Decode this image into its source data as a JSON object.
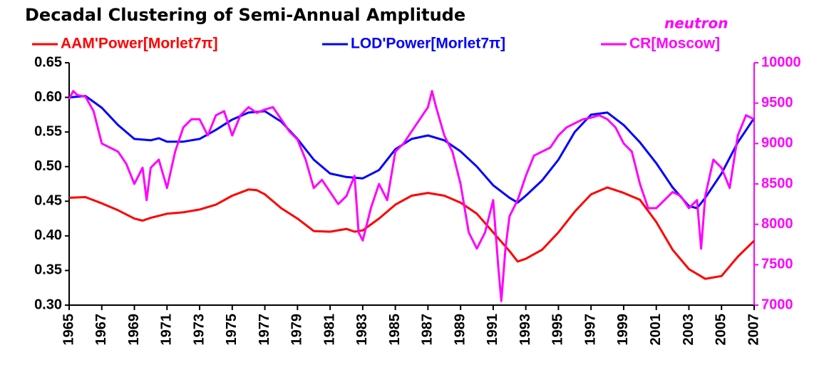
{
  "chart_data": {
    "type": "line",
    "title": "Decadal Clustering of Semi-Annual Amplitude",
    "annotation": "neutron",
    "xlim": [
      1965,
      2007
    ],
    "xticks": [
      1965,
      1967,
      1969,
      1971,
      1973,
      1975,
      1977,
      1979,
      1981,
      1983,
      1985,
      1987,
      1989,
      1991,
      1993,
      1995,
      1997,
      1999,
      2001,
      2003,
      2005,
      2007
    ],
    "ylim": [
      0.3,
      0.65
    ],
    "yticks": [
      {
        "value": 0.3,
        "label": "0.30"
      },
      0.35,
      {
        "value": 0.4,
        "label": "0.40"
      },
      0.45,
      {
        "value": 0.5,
        "label": "0.50"
      },
      0.55,
      {
        "value": 0.6,
        "label": "0.60"
      },
      0.65
    ],
    "y2lim": [
      7000,
      10000
    ],
    "y2ticks": [
      7000,
      7500,
      8000,
      8500,
      9000,
      9500,
      10000
    ],
    "y2color": "#ff00ff",
    "series": [
      {
        "name": "AAM'Power[Morlet7π]",
        "color": "#ff0000",
        "x": [
          1965,
          1966,
          1967,
          1968,
          1969,
          1969.5,
          1970,
          1971,
          1972,
          1973,
          1974,
          1975,
          1976,
          1976.5,
          1977,
          1978,
          1979,
          1980,
          1981,
          1982,
          1982.5,
          1983,
          1984,
          1985,
          1986,
          1987,
          1988,
          1989,
          1990,
          1991,
          1992,
          1992.5,
          1993,
          1994,
          1995,
          1996,
          1997,
          1998,
          1999,
          2000,
          2001,
          2002,
          2003,
          2004,
          2005,
          2006,
          2007
        ],
        "values": [
          0.455,
          0.456,
          0.447,
          0.437,
          0.425,
          0.422,
          0.426,
          0.432,
          0.434,
          0.438,
          0.445,
          0.458,
          0.467,
          0.466,
          0.46,
          0.44,
          0.425,
          0.407,
          0.406,
          0.41,
          0.406,
          0.408,
          0.425,
          0.445,
          0.458,
          0.462,
          0.458,
          0.448,
          0.432,
          0.405,
          0.378,
          0.363,
          0.367,
          0.38,
          0.405,
          0.435,
          0.46,
          0.47,
          0.462,
          0.452,
          0.42,
          0.38,
          0.352,
          0.338,
          0.342,
          0.37,
          0.393
        ]
      },
      {
        "name": "LOD'Power[Morlet7π]",
        "color": "#0000ff",
        "x": [
          1965,
          1966,
          1967,
          1968,
          1969,
          1970,
          1970.5,
          1971,
          1972,
          1973,
          1974,
          1975,
          1976,
          1977,
          1978,
          1979,
          1980,
          1981,
          1982,
          1983,
          1984,
          1985,
          1986,
          1987,
          1988,
          1989,
          1990,
          1991,
          1992,
          1992.5,
          1993,
          1994,
          1995,
          1996,
          1997,
          1998,
          1999,
          2000,
          2001,
          2002,
          2003,
          2003.5,
          2004,
          2005,
          2006,
          2007
        ],
        "values": [
          0.6,
          0.602,
          0.585,
          0.56,
          0.54,
          0.538,
          0.541,
          0.536,
          0.536,
          0.54,
          0.553,
          0.568,
          0.578,
          0.58,
          0.565,
          0.54,
          0.51,
          0.49,
          0.485,
          0.483,
          0.495,
          0.525,
          0.54,
          0.545,
          0.538,
          0.522,
          0.5,
          0.473,
          0.455,
          0.448,
          0.458,
          0.48,
          0.51,
          0.55,
          0.575,
          0.578,
          0.56,
          0.535,
          0.505,
          0.47,
          0.443,
          0.44,
          0.455,
          0.49,
          0.535,
          0.57
        ]
      },
      {
        "name": "CR[Moscow]",
        "color": "#ff00ff",
        "axis": "y2",
        "x": [
          1965,
          1965.25,
          1965.5,
          1966,
          1966.5,
          1967,
          1967.5,
          1968,
          1968.5,
          1969,
          1969.5,
          1969.75,
          1970,
          1970.5,
          1971,
          1971.5,
          1972,
          1972.5,
          1973,
          1973.5,
          1974,
          1974.5,
          1975,
          1975.5,
          1976,
          1976.5,
          1977,
          1977.5,
          1978,
          1978.5,
          1979,
          1979.5,
          1980,
          1980.5,
          1981,
          1981.5,
          1982,
          1982.5,
          1982.75,
          1983,
          1983.5,
          1984,
          1984.5,
          1985,
          1985.5,
          1986,
          1986.5,
          1987,
          1987.25,
          1987.5,
          1988,
          1988.5,
          1989,
          1989.5,
          1990,
          1990.5,
          1991,
          1991.3,
          1991.5,
          1991.75,
          1992,
          1992.5,
          1993,
          1993.5,
          1994,
          1994.5,
          1995,
          1995.5,
          1996,
          1996.5,
          1997,
          1997.5,
          1998,
          1998.5,
          1999,
          1999.5,
          2000,
          2000.5,
          2001,
          2001.5,
          2002,
          2002.5,
          2003,
          2003.5,
          2003.75,
          2004,
          2004.5,
          2005,
          2005.5,
          2006,
          2006.5,
          2007
        ],
        "values": [
          9550,
          9650,
          9600,
          9580,
          9400,
          9000,
          8950,
          8900,
          8750,
          8500,
          8700,
          8300,
          8700,
          8800,
          8450,
          8900,
          9200,
          9300,
          9300,
          9100,
          9350,
          9400,
          9100,
          9350,
          9450,
          9380,
          9420,
          9450,
          9300,
          9150,
          9050,
          8800,
          8450,
          8550,
          8400,
          8250,
          8350,
          8600,
          7900,
          7800,
          8200,
          8500,
          8300,
          8900,
          9000,
          9150,
          9300,
          9450,
          9650,
          9450,
          9100,
          8900,
          8500,
          7900,
          7700,
          7900,
          8300,
          7500,
          7050,
          7700,
          8100,
          8300,
          8600,
          8850,
          8900,
          8950,
          9100,
          9200,
          9250,
          9300,
          9320,
          9350,
          9300,
          9200,
          9000,
          8900,
          8500,
          8200,
          8200,
          8300,
          8400,
          8350,
          8200,
          8300,
          7700,
          8350,
          8800,
          8700,
          8450,
          9100,
          9350,
          9300
        ]
      }
    ]
  }
}
